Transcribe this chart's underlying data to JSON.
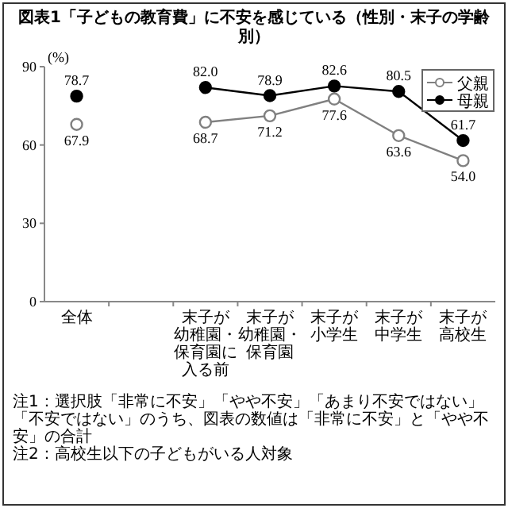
{
  "chart_data": {
    "type": "line",
    "title": "図表1「子どもの教育費」に不安を感じている（性別・末子の学齢別）",
    "ylabel": "(%)",
    "categories": [
      "全体",
      null,
      "末子が幼稚園・保育園に入る前",
      "末子が幼稚園・保育園",
      "末子が小学生",
      "末子が中学生",
      "末子が高校生"
    ],
    "series": [
      {
        "name": "父親",
        "color": "#808080",
        "values": [
          67.9,
          null,
          68.7,
          71.2,
          77.6,
          63.6,
          54.0
        ],
        "value_labels": [
          "67.9",
          null,
          "68.7",
          "71.2",
          "77.6",
          "63.6",
          "54.0"
        ]
      },
      {
        "name": "母親",
        "color": "#000000",
        "values": [
          78.7,
          null,
          82.0,
          78.9,
          82.6,
          80.5,
          61.7
        ],
        "value_labels": [
          "78.7",
          null,
          "82.0",
          "78.9",
          "82.6",
          "80.5",
          "61.7"
        ]
      }
    ],
    "ylim": [
      0,
      90
    ],
    "yticks": [
      0,
      30,
      60,
      90
    ],
    "legend": "top right",
    "marker": "circle",
    "grid": false,
    "annotations": [
      "注1：選択肢「非常に不安」「やや不安」「あまり不安ではない」「不安ではない」のうち、図表の数値は「非常に不安」と「やや不安」の合計",
      "注2：高校生以下の子どもがいる人対象"
    ]
  }
}
